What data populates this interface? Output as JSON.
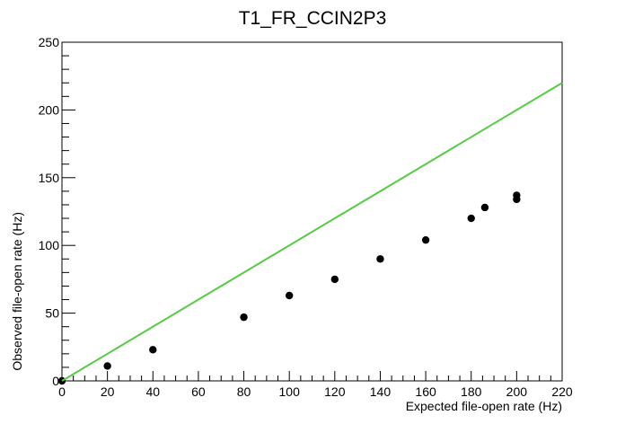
{
  "chart_data": {
    "type": "scatter",
    "title": "T1_FR_CCIN2P3",
    "xlabel": "Expected file-open rate (Hz)",
    "ylabel": "Observed file-open rate (Hz)",
    "xlim": [
      0,
      220
    ],
    "ylim": [
      0,
      250
    ],
    "x_ticks": [
      0,
      20,
      40,
      60,
      80,
      100,
      120,
      140,
      160,
      180,
      200,
      220
    ],
    "y_ticks": [
      0,
      50,
      100,
      150,
      200,
      250
    ],
    "grid": false,
    "legend": "none",
    "series": [
      {
        "kind": "points",
        "color": "#000000",
        "points": [
          {
            "x": 0,
            "y": 0
          },
          {
            "x": 20,
            "y": 11
          },
          {
            "x": 40,
            "y": 23
          },
          {
            "x": 80,
            "y": 47
          },
          {
            "x": 100,
            "y": 63
          },
          {
            "x": 120,
            "y": 75
          },
          {
            "x": 140,
            "y": 90
          },
          {
            "x": 160,
            "y": 104
          },
          {
            "x": 180,
            "y": 120
          },
          {
            "x": 186,
            "y": 128
          },
          {
            "x": 200,
            "y": 134
          },
          {
            "x": 200,
            "y": 137
          }
        ]
      },
      {
        "kind": "line",
        "color": "#55cc44",
        "points": [
          {
            "x": 0,
            "y": 0
          },
          {
            "x": 220,
            "y": 220
          }
        ]
      }
    ]
  }
}
